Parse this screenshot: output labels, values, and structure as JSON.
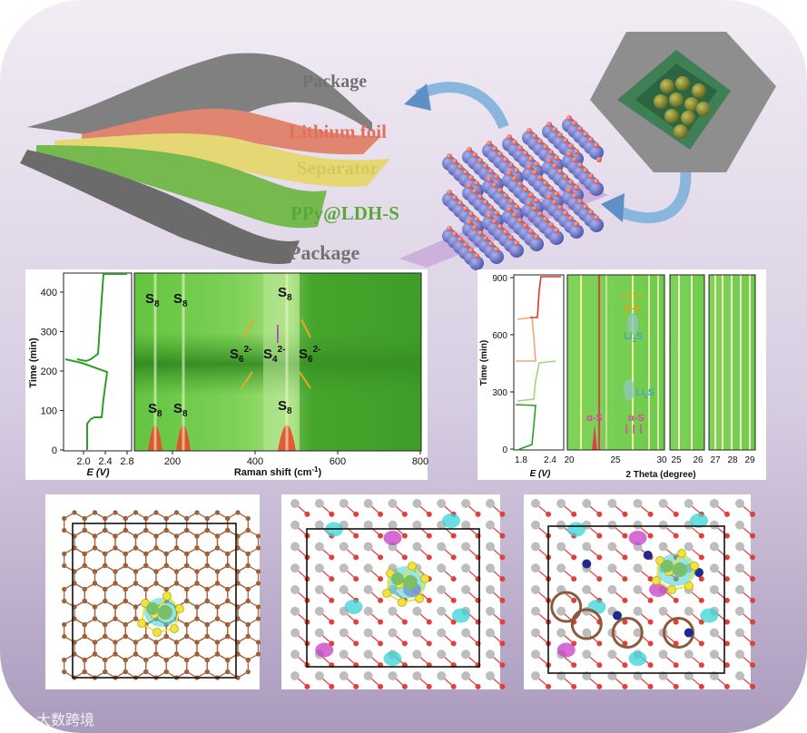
{
  "colors": {
    "bg_top": "#ece3f0",
    "bg_bottom": "#b7a8c8",
    "package": "#7a7a7a",
    "lithium": "#e07f6a",
    "separator": "#e3d46a",
    "cathode": "#6fb24a",
    "ldh_blue": "#6b74c9",
    "ldh_red": "#e8644e",
    "sulfur": "#f1e33a",
    "green_dark": "#2e8f1f"
  },
  "layers": {
    "package_top": "Package",
    "lithium": "Lithium foil",
    "separator": "Separator",
    "cathode": "PPy@LDH-S",
    "package_bottom": "Package"
  },
  "raman": {
    "ylabel": "Time (min)",
    "yticks": [
      "0",
      "100",
      "200",
      "300",
      "400"
    ],
    "ev_label": "E (V)",
    "ev_ticks": [
      "2.0",
      "2.4",
      "2.8"
    ],
    "xlabel": "Raman shift (cm",
    "xlabel_sup": "-1",
    "xlabel_end": ")",
    "xticks": [
      "200",
      "400",
      "600",
      "800"
    ],
    "species": {
      "s8": "S",
      "s8_sub": "8",
      "s6": "S",
      "s6_sub": "6",
      "s6_sup": "2-",
      "s4": "S",
      "s4_sub": "4",
      "s4_sup": "2-"
    }
  },
  "xrd": {
    "ylabel": "Time (min)",
    "yticks": [
      "0",
      "300",
      "600",
      "900"
    ],
    "ev_label": "E (V)",
    "ev_ticks": [
      "1.8",
      "2.4"
    ],
    "xlabel": "2 Theta (degree)",
    "xticks_a": [
      "20",
      "25",
      "30"
    ],
    "xticks_b": [
      "25",
      "26"
    ],
    "xticks_c": [
      "27",
      "28",
      "29"
    ],
    "beta_s": "β-S",
    "alpha_s": "α-S",
    "li2s": "Li",
    "li2s_sub": "2",
    "li2s_end": "S"
  },
  "watermark": "大数跨境"
}
